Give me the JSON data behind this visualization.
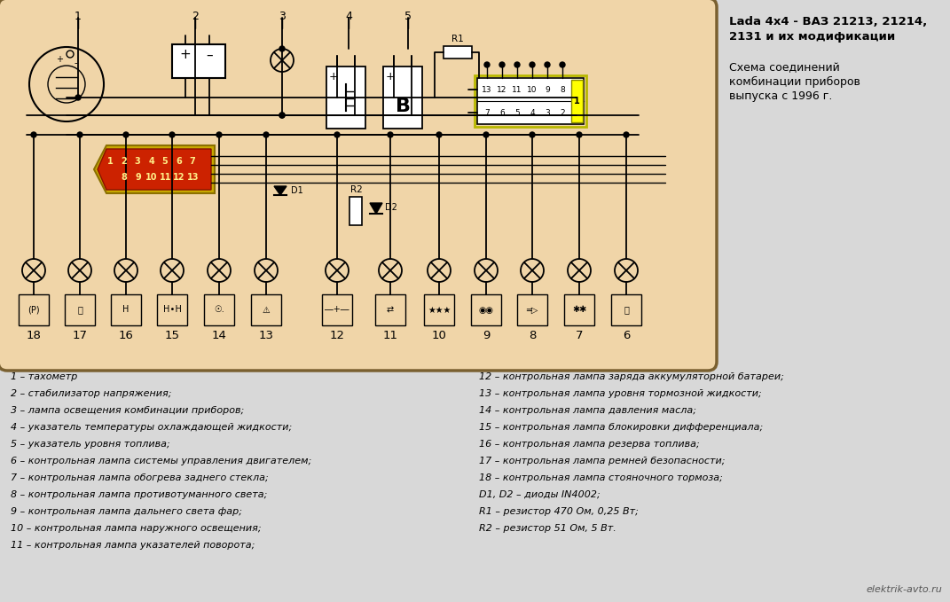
{
  "bg_color": "#f0d5a8",
  "outer_bg": "#d8d8d8",
  "title_line1": "Lada 4x4 - ВАЗ 21213, 21214,",
  "title_line2": "2131 и их модификации",
  "subtitle_line1": "Схема соединений",
  "subtitle_line2": "комбинации приборов",
  "subtitle_line3": "выпуска с 1996 г.",
  "watermark": "elektrik-avto.ru",
  "legend_left": [
    "1 – тахометр",
    "2 – стабилизатор напряжения;",
    "3 – лампа освещения комбинации приборов;",
    "4 – указатель температуры охлаждающей жидкости;",
    "5 – указатель уровня топлива;",
    "6 – контрольная лампа системы управления двигателем;",
    "7 – контрольная лампа обогрева заднего стекла;",
    "8 – контрольная лампа противотуманного света;",
    "9 – контрольная лампа дальнего света фар;",
    "10 – контрольная лампа наружного освещения;",
    "11 – контрольная лампа указателей поворота;"
  ],
  "legend_right": [
    "12 – контрольная лампа заряда аккумуляторной батареи;",
    "13 – контрольная лампа уровня тормозной жидкости;",
    "14 – контрольная лампа давления масла;",
    "15 – контрольная лампа блокировки дифференциала;",
    "16 – контрольная лампа резерва топлива;",
    "17 – контрольная лампа ремней безопасности;",
    "18 – контрольная лампа стояночного тормоза;",
    "D1, D2 – диоды IN4002;",
    "R1 – резистор 470 Ом, 0,25 Вт;",
    "R2 – резистор 51 Ом, 5 Вт."
  ]
}
